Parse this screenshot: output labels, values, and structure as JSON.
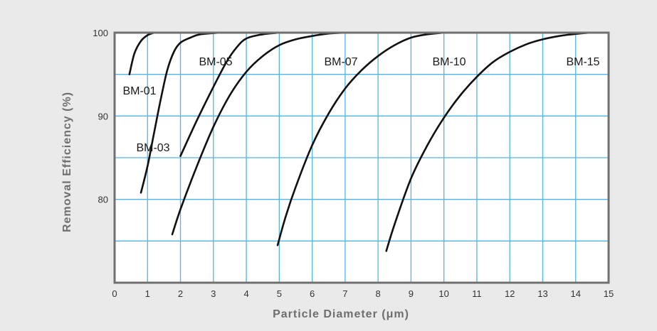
{
  "chart_data": {
    "type": "line",
    "xlabel": "Particle  Diameter  (μm)",
    "ylabel": "Removal Efficiency (%)",
    "xlim": [
      0,
      15
    ],
    "ylim": [
      70,
      100
    ],
    "x_ticks": [
      0,
      1,
      2,
      3,
      4,
      5,
      6,
      7,
      8,
      9,
      10,
      11,
      12,
      13,
      14,
      15
    ],
    "y_ticks": [
      80,
      90,
      100
    ],
    "grid": true,
    "colors": {
      "background": "#eaeaea",
      "plot_background": "#ffffff",
      "grid": "#4fb6e6",
      "frame": "#707070",
      "curve": "#111111"
    },
    "series": [
      {
        "name": "BM-01",
        "x": [
          0.45,
          0.6,
          0.8,
          1.0,
          1.2
        ],
        "y": [
          95.0,
          97.5,
          99.0,
          99.7,
          100
        ]
      },
      {
        "name": "BM-03",
        "x": [
          0.8,
          1.0,
          1.2,
          1.4,
          1.6,
          1.8,
          2.0,
          2.3,
          2.6,
          3.2
        ],
        "y": [
          80.8,
          84.0,
          88.0,
          92.0,
          95.5,
          97.7,
          98.8,
          99.4,
          99.8,
          100
        ]
      },
      {
        "name": "BM-05",
        "x": [
          2.0,
          2.5,
          3.0,
          3.4,
          3.7,
          4.0,
          4.5,
          5.0
        ],
        "y": [
          85.2,
          89.5,
          93.5,
          96.5,
          98.2,
          99.3,
          99.8,
          100
        ]
      },
      {
        "name": "BM-07",
        "x": [
          1.75,
          2.0,
          2.5,
          3.0,
          3.5,
          4.0,
          4.5,
          5.0,
          5.5,
          6.0,
          6.5,
          7.0
        ],
        "y": [
          75.8,
          78.8,
          84.0,
          88.7,
          92.5,
          95.3,
          97.2,
          98.5,
          99.2,
          99.6,
          99.9,
          100
        ]
      },
      {
        "name": "BM-10",
        "x": [
          4.95,
          5.2,
          5.5,
          6.0,
          6.5,
          7.0,
          7.5,
          8.0,
          8.5,
          9.0,
          9.5,
          10.0
        ],
        "y": [
          74.5,
          78.0,
          81.5,
          86.5,
          90.3,
          93.3,
          95.5,
          97.2,
          98.5,
          99.4,
          99.8,
          100
        ]
      },
      {
        "name": "BM-15",
        "x": [
          8.25,
          8.5,
          9.0,
          9.5,
          10.0,
          10.5,
          11.0,
          11.5,
          12.0,
          12.5,
          13.0,
          13.5,
          14.0,
          14.5,
          15.0
        ],
        "y": [
          73.8,
          77.0,
          82.5,
          86.5,
          89.8,
          92.5,
          94.7,
          96.5,
          97.7,
          98.6,
          99.2,
          99.6,
          99.85,
          100,
          100
        ]
      }
    ]
  }
}
